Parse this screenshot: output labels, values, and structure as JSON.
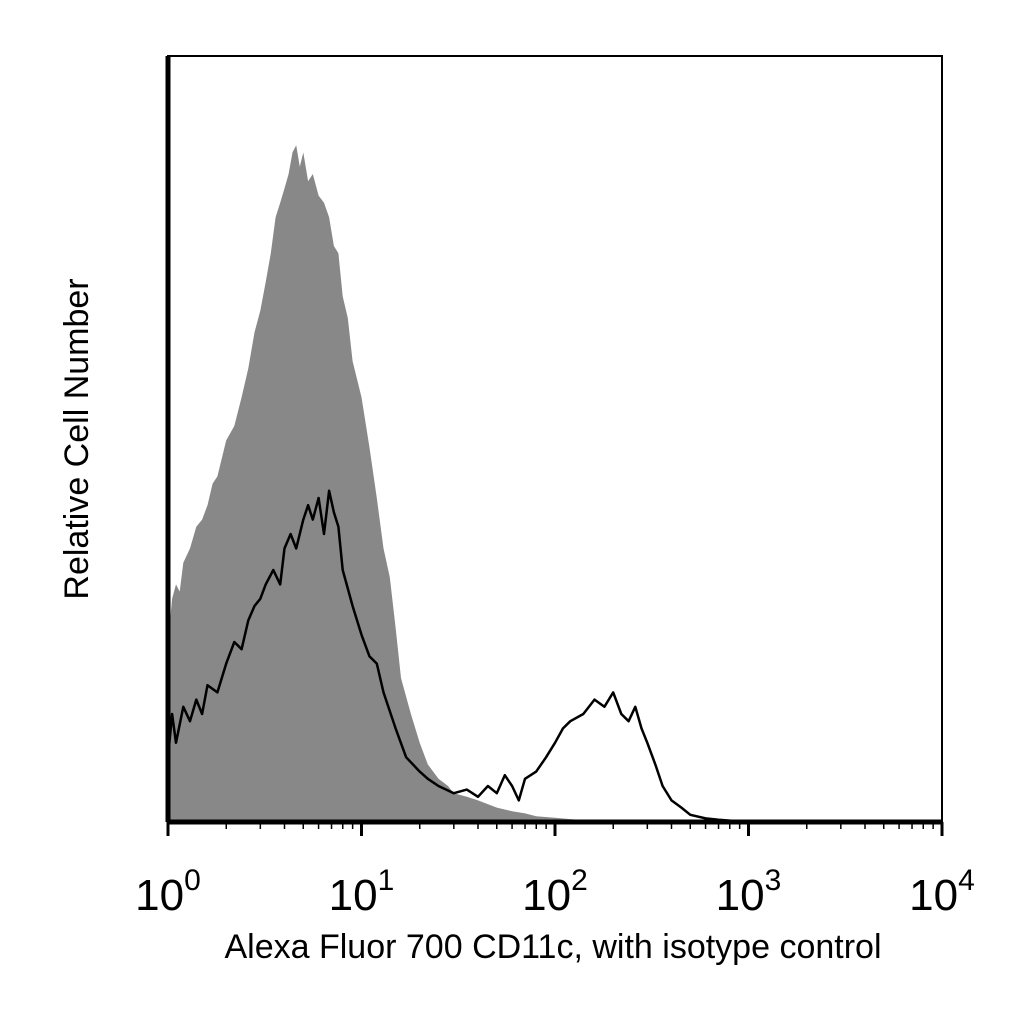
{
  "chart_data": {
    "type": "area",
    "xlabel": "Alexa Fluor 700 CD11c, with isotype control",
    "ylabel": "Relative Cell Number",
    "x_scale": "log",
    "xlim": [
      1,
      10000
    ],
    "ylim": [
      0,
      1
    ],
    "x_ticks": [
      {
        "base": "10",
        "exp": "0"
      },
      {
        "base": "10",
        "exp": "1"
      },
      {
        "base": "10",
        "exp": "2"
      },
      {
        "base": "10",
        "exp": "3"
      },
      {
        "base": "10",
        "exp": "4"
      }
    ],
    "grid": false,
    "legend": "none",
    "series": [
      {
        "style": "filled",
        "color": "#888888",
        "x": [
          1.0,
          1.05,
          1.1,
          1.15,
          1.2,
          1.3,
          1.4,
          1.5,
          1.6,
          1.7,
          1.8,
          2.0,
          2.2,
          2.4,
          2.6,
          2.8,
          3.0,
          3.2,
          3.4,
          3.6,
          3.8,
          4.0,
          4.2,
          4.4,
          4.6,
          4.8,
          5.0,
          5.3,
          5.6,
          6.0,
          6.4,
          6.8,
          7.2,
          7.6,
          8.0,
          8.5,
          9.0,
          10,
          11,
          12,
          13,
          14,
          15,
          16,
          18,
          20,
          22,
          25,
          28,
          30,
          35,
          40,
          50,
          60,
          70,
          80,
          100,
          120,
          150,
          200
        ],
        "y": [
          0.25,
          0.31,
          0.33,
          0.32,
          0.36,
          0.38,
          0.41,
          0.42,
          0.44,
          0.47,
          0.48,
          0.53,
          0.55,
          0.59,
          0.63,
          0.68,
          0.71,
          0.75,
          0.79,
          0.84,
          0.86,
          0.88,
          0.9,
          0.93,
          0.94,
          0.91,
          0.93,
          0.89,
          0.9,
          0.87,
          0.86,
          0.84,
          0.8,
          0.79,
          0.73,
          0.7,
          0.64,
          0.59,
          0.52,
          0.45,
          0.38,
          0.34,
          0.27,
          0.2,
          0.15,
          0.11,
          0.08,
          0.06,
          0.05,
          0.04,
          0.035,
          0.03,
          0.02,
          0.015,
          0.012,
          0.008,
          0.006,
          0.004,
          0.002,
          0.0
        ]
      },
      {
        "style": "line",
        "color": "#000000",
        "x": [
          1.0,
          1.05,
          1.1,
          1.2,
          1.3,
          1.4,
          1.5,
          1.6,
          1.8,
          2.0,
          2.2,
          2.4,
          2.6,
          2.8,
          3.0,
          3.2,
          3.5,
          3.8,
          4.0,
          4.3,
          4.6,
          5.0,
          5.3,
          5.6,
          6.0,
          6.4,
          6.8,
          7.2,
          7.6,
          8.0,
          9.0,
          10,
          11,
          12,
          13,
          15,
          17,
          20,
          22,
          25,
          30,
          35,
          40,
          45,
          50,
          55,
          60,
          65,
          70,
          80,
          90,
          100,
          110,
          120,
          140,
          160,
          180,
          200,
          220,
          240,
          260,
          280,
          300,
          330,
          360,
          400,
          450,
          500,
          600,
          700,
          800,
          900,
          1000,
          1200,
          1500,
          2000,
          3000,
          5000,
          10000
        ],
        "y": [
          0.09,
          0.15,
          0.11,
          0.16,
          0.14,
          0.17,
          0.15,
          0.19,
          0.18,
          0.22,
          0.25,
          0.24,
          0.28,
          0.3,
          0.31,
          0.33,
          0.35,
          0.33,
          0.38,
          0.4,
          0.38,
          0.42,
          0.44,
          0.42,
          0.45,
          0.4,
          0.46,
          0.43,
          0.41,
          0.35,
          0.3,
          0.26,
          0.23,
          0.22,
          0.18,
          0.13,
          0.09,
          0.07,
          0.06,
          0.05,
          0.04,
          0.045,
          0.035,
          0.05,
          0.04,
          0.065,
          0.05,
          0.03,
          0.06,
          0.07,
          0.09,
          0.11,
          0.13,
          0.14,
          0.15,
          0.17,
          0.16,
          0.18,
          0.15,
          0.14,
          0.16,
          0.13,
          0.11,
          0.08,
          0.05,
          0.03,
          0.02,
          0.01,
          0.005,
          0.003,
          0.002,
          0.001,
          0.001,
          0.0,
          0.0,
          0.0,
          0.0,
          0.0,
          0.0
        ]
      }
    ]
  }
}
